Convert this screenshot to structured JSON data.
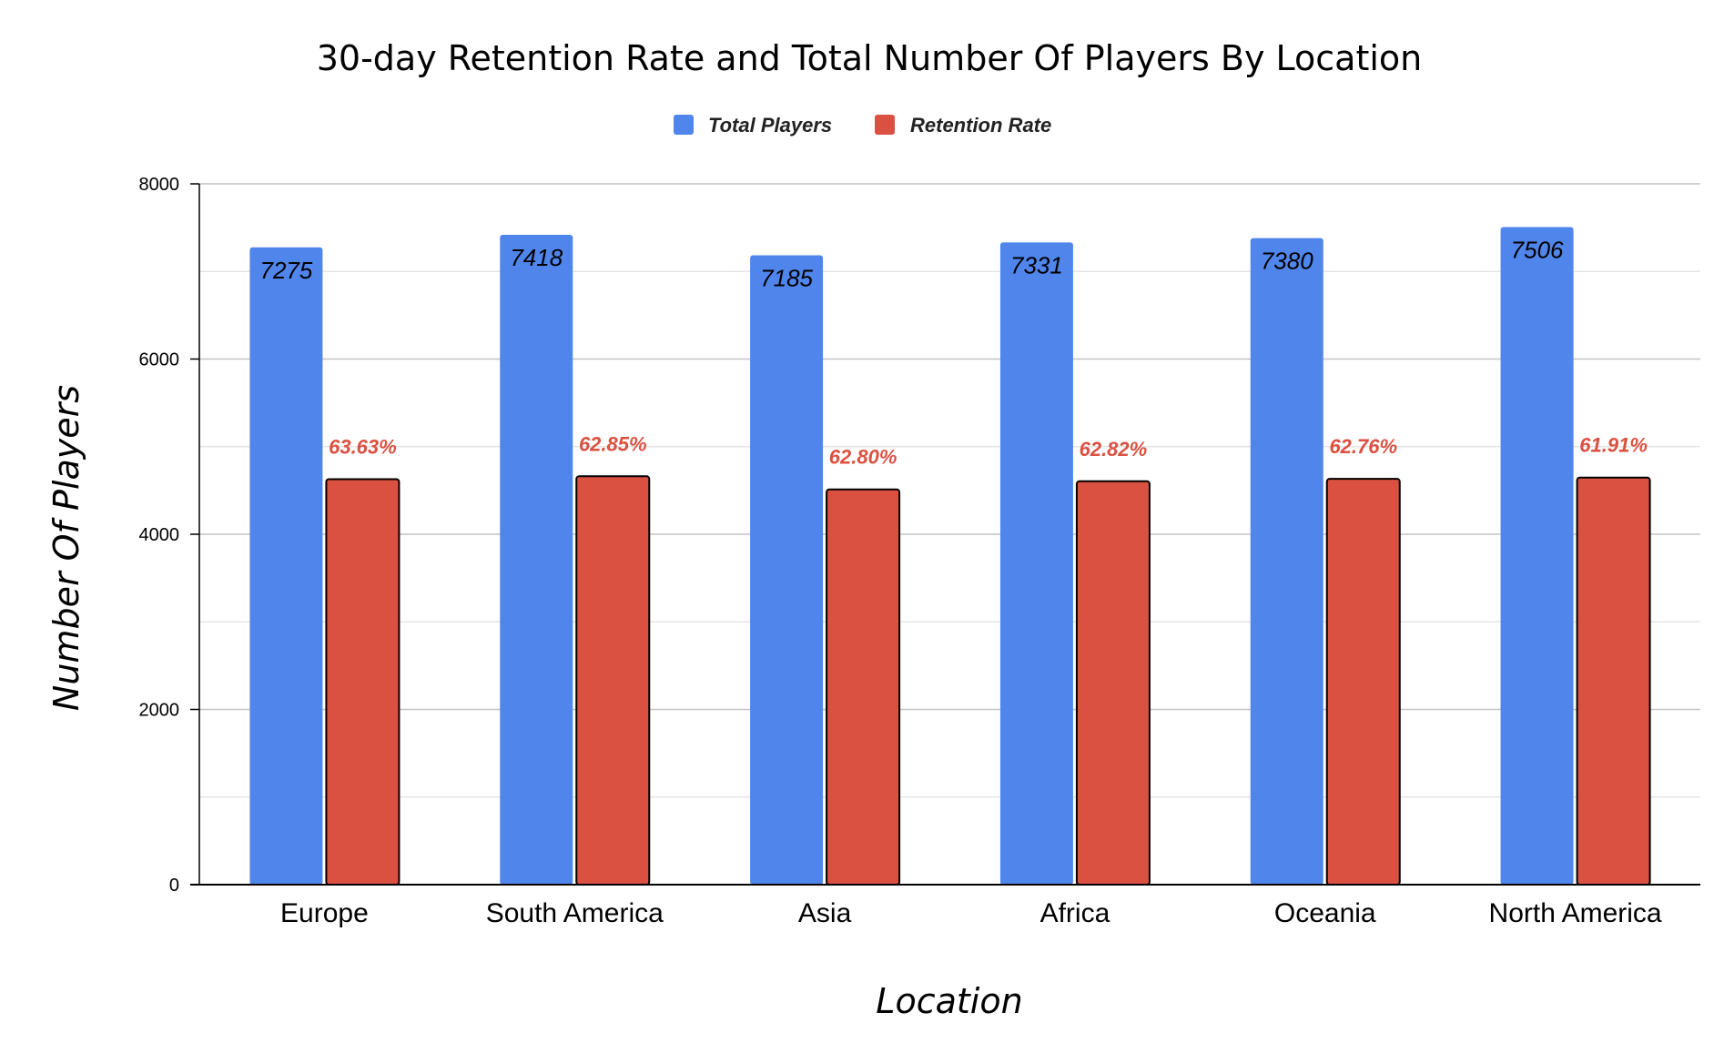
{
  "chart_data": {
    "type": "bar",
    "title": "30-day Retention Rate and Total Number Of Players By Location",
    "xlabel": "Location",
    "ylabel": "Number Of Players",
    "ylim": [
      0,
      8000
    ],
    "yticks": [
      0,
      2000,
      4000,
      6000,
      8000
    ],
    "grid": true,
    "legend_position": "top",
    "categories": [
      "Europe",
      "South America",
      "Asia",
      "Africa",
      "Oceania",
      "North America"
    ],
    "series": [
      {
        "name": "Total Players",
        "color": "#5086EC",
        "values": [
          7275,
          7418,
          7185,
          7331,
          7380,
          7506
        ],
        "data_labels": [
          "7275",
          "7418",
          "7185",
          "7331",
          "7380",
          "7506"
        ]
      },
      {
        "name": "Retention Rate",
        "color": "#DB5141",
        "values": [
          4629,
          4662,
          4512,
          4605,
          4632,
          4647
        ],
        "data_labels": [
          "63.63%",
          "62.85%",
          "62.80%",
          "62.82%",
          "62.76%",
          "61.91%"
        ]
      }
    ]
  }
}
